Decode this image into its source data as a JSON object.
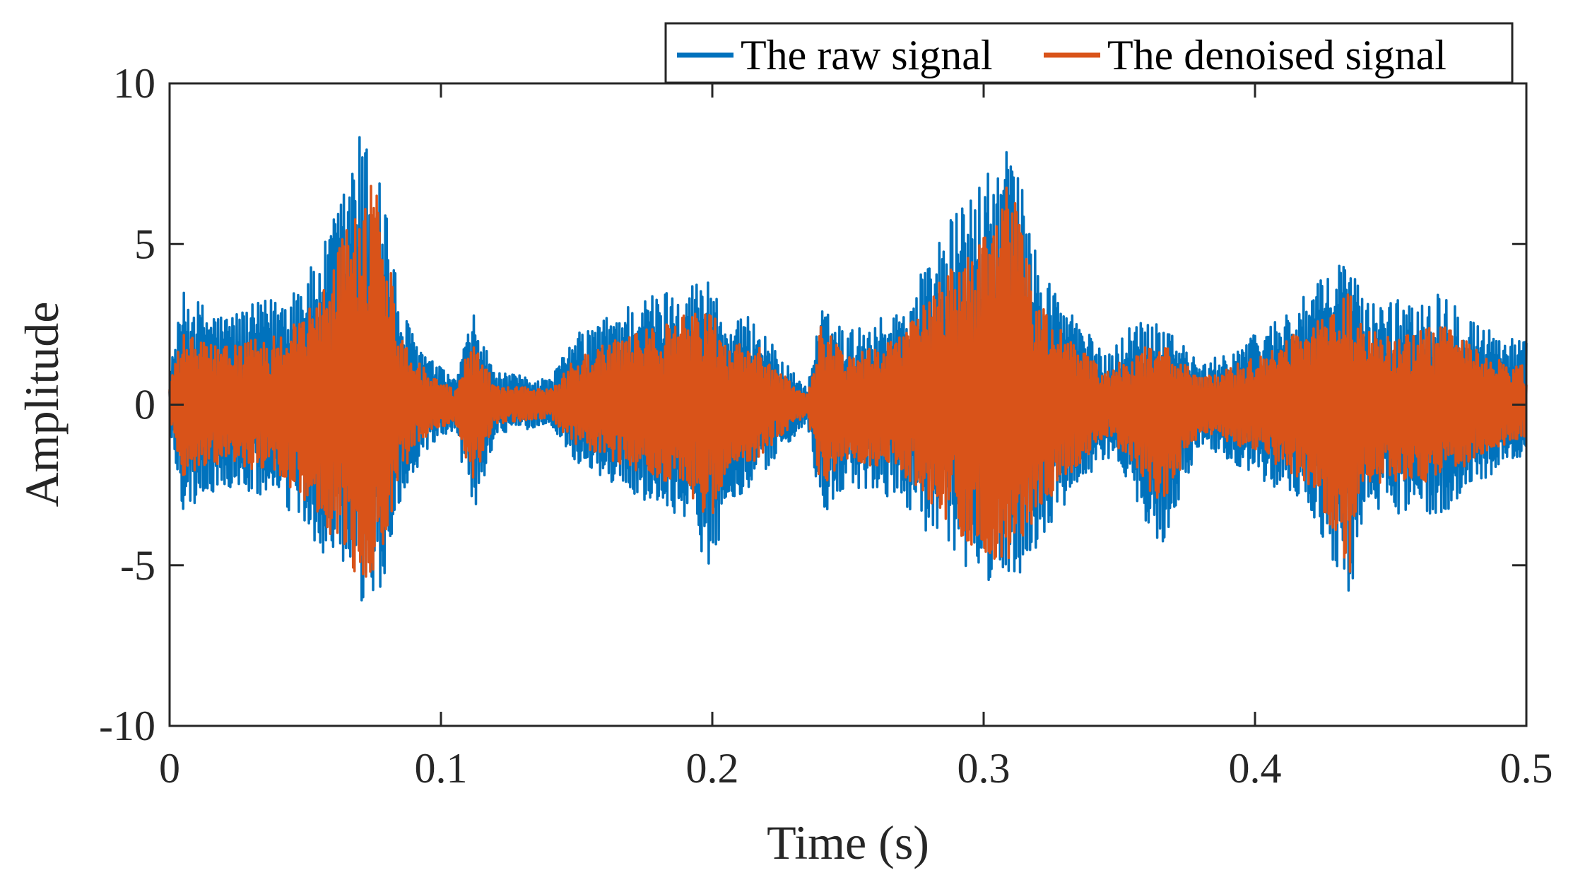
{
  "chart_data": {
    "type": "line",
    "title": "",
    "xlabel": "Time (s)",
    "ylabel": "Amplitude",
    "xlim": [
      0,
      0.5
    ],
    "ylim": [
      -10,
      10
    ],
    "grid": false,
    "legend_position": "top-right, above plot area",
    "x_ticks": [
      {
        "value": 0,
        "label": "0"
      },
      {
        "value": 0.1,
        "label": "0.1"
      },
      {
        "value": 0.2,
        "label": "0.2"
      },
      {
        "value": 0.3,
        "label": "0.3"
      },
      {
        "value": 0.4,
        "label": "0.4"
      },
      {
        "value": 0.5,
        "label": "0.5"
      }
    ],
    "y_ticks": [
      {
        "value": -10,
        "label": "-10"
      },
      {
        "value": -5,
        "label": "-5"
      },
      {
        "value": 0,
        "label": "0"
      },
      {
        "value": 5,
        "label": "5"
      },
      {
        "value": 10,
        "label": "10"
      }
    ],
    "series": [
      {
        "name": "The raw signal",
        "color": "#0072BD",
        "envelope": {
          "t": [
            0,
            0.005,
            0.02,
            0.04,
            0.055,
            0.065,
            0.07,
            0.078,
            0.085,
            0.095,
            0.105,
            0.112,
            0.12,
            0.14,
            0.15,
            0.17,
            0.19,
            0.2,
            0.205,
            0.215,
            0.225,
            0.235,
            0.24,
            0.25,
            0.27,
            0.285,
            0.295,
            0.3,
            0.31,
            0.32,
            0.33,
            0.345,
            0.355,
            0.365,
            0.38,
            0.4,
            0.42,
            0.435,
            0.44,
            0.455,
            0.47,
            0.485,
            0.5
          ],
          "upper": [
            1.0,
            3.5,
            2.8,
            3.4,
            4.5,
            7.0,
            8.5,
            7.5,
            3.0,
            1.5,
            0.8,
            2.8,
            1.0,
            0.8,
            2.2,
            3.2,
            3.8,
            4.0,
            2.5,
            2.8,
            1.5,
            0.5,
            3.0,
            2.3,
            3.0,
            5.5,
            6.5,
            7.0,
            8.3,
            4.5,
            3.2,
            1.5,
            2.6,
            2.8,
            1.2,
            2.2,
            3.5,
            4.8,
            3.2,
            3.3,
            3.6,
            2.4,
            2.0
          ],
          "lower": [
            -0.8,
            -3.3,
            -2.6,
            -3.0,
            -4.5,
            -5.5,
            -6.4,
            -6.0,
            -3.0,
            -1.5,
            -0.8,
            -3.5,
            -1.0,
            -0.6,
            -1.8,
            -2.8,
            -3.5,
            -5.3,
            -3.0,
            -2.6,
            -1.5,
            -0.5,
            -3.8,
            -2.6,
            -3.0,
            -4.6,
            -5.3,
            -5.5,
            -5.6,
            -4.5,
            -3.2,
            -1.6,
            -2.8,
            -4.5,
            -1.2,
            -2.2,
            -3.2,
            -6.1,
            -3.4,
            -3.4,
            -3.4,
            -2.3,
            -1.5
          ]
        }
      },
      {
        "name": "The denoised signal",
        "color": "#D95319",
        "envelope": {
          "t": [
            0,
            0.005,
            0.02,
            0.04,
            0.055,
            0.065,
            0.07,
            0.078,
            0.085,
            0.095,
            0.105,
            0.112,
            0.12,
            0.14,
            0.15,
            0.17,
            0.19,
            0.2,
            0.205,
            0.215,
            0.225,
            0.235,
            0.24,
            0.25,
            0.27,
            0.285,
            0.295,
            0.3,
            0.31,
            0.32,
            0.33,
            0.345,
            0.355,
            0.365,
            0.38,
            0.4,
            0.42,
            0.435,
            0.44,
            0.455,
            0.47,
            0.485,
            0.5
          ],
          "upper": [
            0.7,
            2.2,
            1.8,
            2.2,
            3.3,
            5.5,
            7.2,
            6.5,
            2.2,
            1.0,
            0.5,
            2.2,
            0.6,
            0.5,
            1.5,
            2.2,
            2.8,
            3.0,
            1.8,
            2.0,
            1.0,
            0.3,
            2.5,
            1.6,
            2.2,
            4.0,
            4.8,
            5.5,
            7.0,
            3.2,
            2.2,
            1.0,
            1.6,
            2.0,
            0.8,
            1.5,
            2.5,
            3.5,
            2.3,
            2.2,
            2.5,
            1.5,
            1.2
          ],
          "lower": [
            -0.6,
            -2.2,
            -1.8,
            -2.2,
            -3.5,
            -4.8,
            -5.6,
            -5.0,
            -2.2,
            -1.0,
            -0.5,
            -2.4,
            -0.6,
            -0.4,
            -1.3,
            -2.0,
            -2.6,
            -3.8,
            -2.0,
            -1.8,
            -1.0,
            -0.3,
            -2.6,
            -1.7,
            -2.2,
            -3.6,
            -4.4,
            -4.8,
            -4.8,
            -3.4,
            -2.3,
            -1.0,
            -1.8,
            -3.2,
            -0.8,
            -1.5,
            -2.5,
            -5.2,
            -2.5,
            -2.4,
            -2.4,
            -1.5,
            -1.0
          ]
        }
      }
    ]
  }
}
